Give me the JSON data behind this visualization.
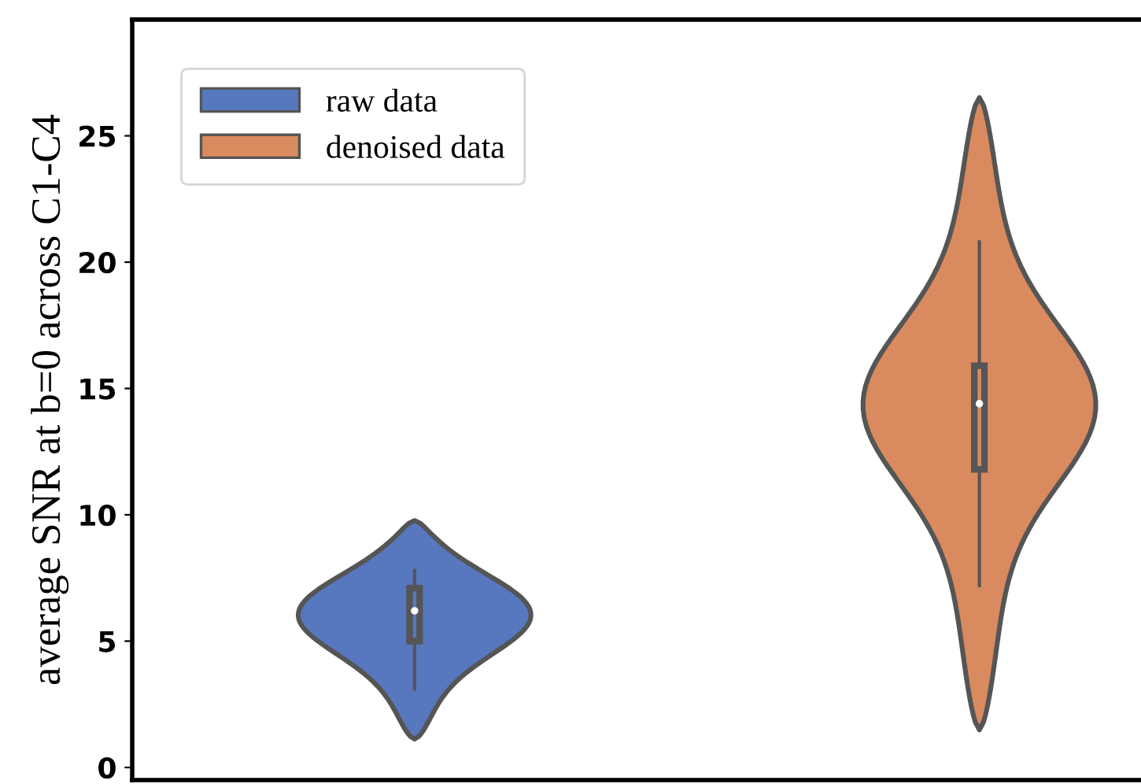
{
  "chart_data": {
    "type": "box",
    "ylabel": "average SNR at b=0 across C1-C4",
    "categories": [
      null,
      null
    ],
    "ylim": [
      -0.5,
      29.6
    ],
    "yticks": [
      0,
      5,
      10,
      15,
      20,
      25
    ],
    "grid": false,
    "legend": "top left",
    "series": [
      {
        "name": "raw data",
        "color": "#5778bf",
        "boxes": [
          {
            "low": 3.1,
            "q1": 5.0,
            "median": 6.2,
            "q3": 7.1,
            "high": 7.8
          },
          null
        ]
      },
      {
        "name": "denoised data",
        "color": "#d98b5f",
        "boxes": [
          null,
          {
            "low": 7.2,
            "q1": 11.8,
            "median": 14.4,
            "q3": 15.9,
            "high": 20.8
          }
        ]
      }
    ]
  }
}
